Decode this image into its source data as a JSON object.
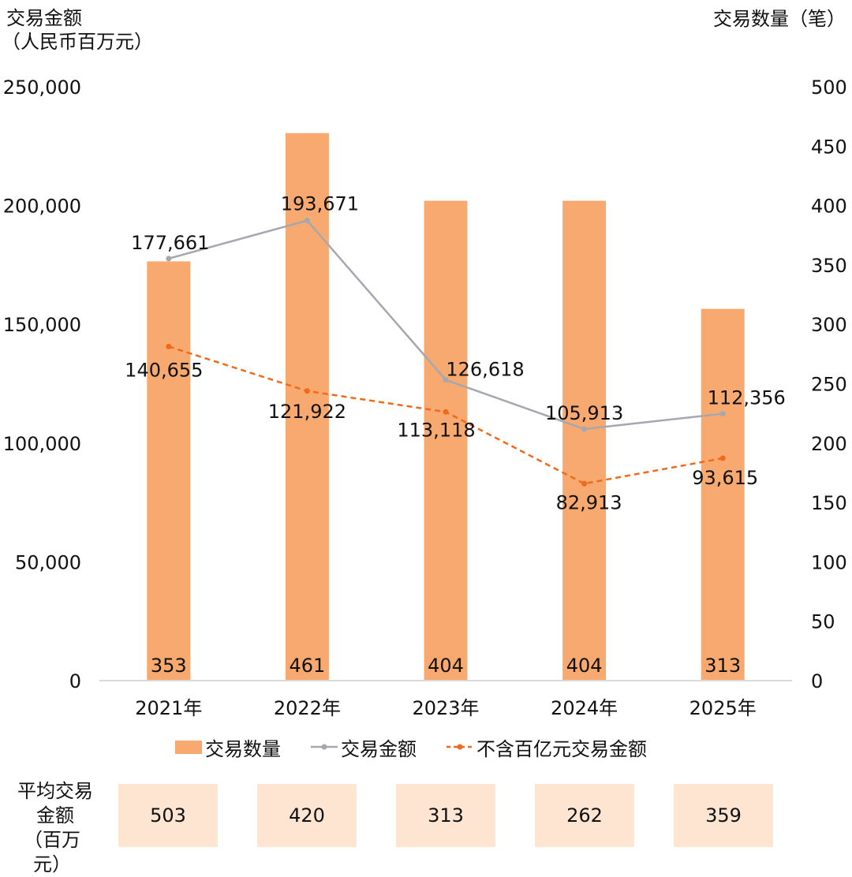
{
  "left_axis_title": [
    "交易金额",
    "（人民币百万元）"
  ],
  "right_axis_title": "交易数量（笔）",
  "chart_data": {
    "type": "bar",
    "categories": [
      "2021年",
      "2022年",
      "2023年",
      "2024年",
      "2025年"
    ],
    "series": [
      {
        "name": "交易数量",
        "type": "bar",
        "axis": "right",
        "values": [
          353,
          461,
          404,
          404,
          313
        ],
        "color": "#F8A970"
      },
      {
        "name": "交易金额",
        "type": "line",
        "axis": "left",
        "values": [
          177661,
          193671,
          126618,
          105913,
          112356
        ],
        "labels": [
          "177,661",
          "193,671",
          "126,618",
          "105,913",
          "112,356"
        ],
        "color": "#A5A7B1"
      },
      {
        "name": "不含百亿元交易金额",
        "type": "line",
        "axis": "left",
        "dashed": true,
        "values": [
          140655,
          121922,
          113118,
          82913,
          93615
        ],
        "labels": [
          "140,655",
          "121,922",
          "113,118",
          "82,913",
          "93,615"
        ],
        "color": "#F06A1C"
      }
    ],
    "y_left": {
      "ylim": [
        0,
        250000
      ],
      "ticks": [
        "0",
        "50,000",
        "100,000",
        "150,000",
        "200,000",
        "250,000"
      ]
    },
    "y_right": {
      "ylim": [
        0,
        500
      ],
      "ticks": [
        "0",
        "50",
        "100",
        "150",
        "200",
        "250",
        "300",
        "350",
        "400",
        "450",
        "500"
      ]
    },
    "grid": false,
    "legend_position": "bottom"
  },
  "legend": [
    "交易数量",
    "交易金额",
    "不含百亿元交易金额"
  ],
  "average": {
    "label": [
      "平均交易",
      "金额",
      "（百万元）"
    ],
    "values": [
      "503",
      "420",
      "313",
      "262",
      "359"
    ]
  }
}
